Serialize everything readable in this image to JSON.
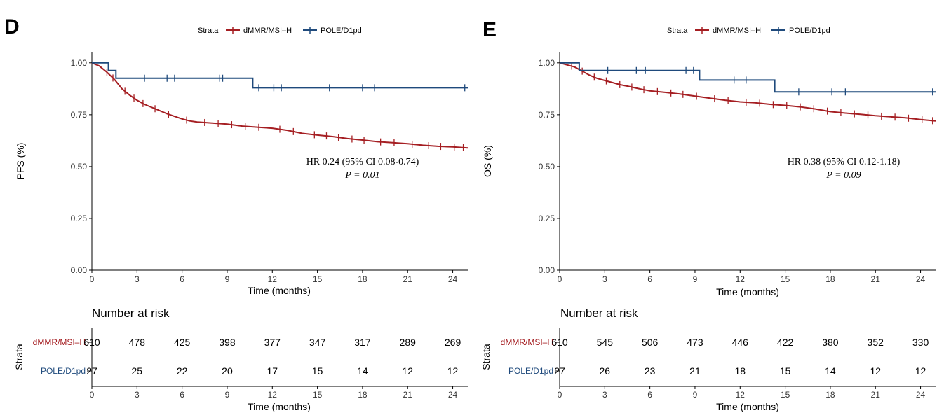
{
  "panels": [
    {
      "letter": "D",
      "legend": {
        "title": "Strata",
        "items": [
          "dMMR/MSI–H",
          "POLE/D1pd"
        ]
      },
      "ylabel": "PFS (%)",
      "annotation": {
        "hr": "HR 0.24 (95% CI 0.08-0.74)",
        "p": "P = 0.01"
      },
      "risk_title": "Number at risk",
      "risk_ylabel": "Strata",
      "risk_rows": [
        {
          "label": "dMMR/MSI–H",
          "values": [
            "610",
            "478",
            "425",
            "398",
            "377",
            "347",
            "317",
            "289",
            "269"
          ]
        },
        {
          "label": "POLE/D1pd",
          "values": [
            "27",
            "25",
            "22",
            "20",
            "17",
            "15",
            "14",
            "12",
            "12"
          ]
        }
      ]
    },
    {
      "letter": "E",
      "legend": {
        "title": "Strata",
        "items": [
          "dMMR/MSI–H",
          "POLE/D1pd"
        ]
      },
      "ylabel": "OS (%)",
      "annotation": {
        "hr": "HR 0.38 (95% CI 0.12-1.18)",
        "p": "P = 0.09"
      },
      "risk_title": "Number at risk",
      "risk_ylabel": "Strata",
      "risk_rows": [
        {
          "label": "dMMR/MSI–H",
          "values": [
            "610",
            "545",
            "506",
            "473",
            "446",
            "422",
            "380",
            "352",
            "330"
          ]
        },
        {
          "label": "POLE/D1pd",
          "values": [
            "27",
            "26",
            "23",
            "21",
            "18",
            "15",
            "14",
            "12",
            "12"
          ]
        }
      ]
    }
  ],
  "colors": {
    "dmmr": "#a51e22",
    "pole": "#1f4a7c",
    "axis": "#000000",
    "label": "#333333"
  },
  "chart_data": [
    {
      "type": "line",
      "xlabel": "Time (months)",
      "ylabel": "PFS (%)",
      "xlim": [
        0,
        25
      ],
      "ylim": [
        0,
        1.05
      ],
      "xticks": [
        0,
        3,
        6,
        9,
        12,
        15,
        18,
        21,
        24
      ],
      "yticks": [
        0.0,
        0.25,
        0.5,
        0.75,
        1.0
      ],
      "ytick_labels": [
        "0.00",
        "0.25",
        "0.50",
        "0.75",
        "1.00"
      ],
      "grid": false,
      "legend_position": "top",
      "series": [
        {
          "name": "dMMR/MSI–H",
          "x": [
            0,
            0.5,
            1,
            1.5,
            2,
            2.5,
            3,
            3.5,
            4,
            4.5,
            5,
            5.5,
            6,
            6.5,
            7,
            8,
            9,
            10,
            11,
            12,
            13,
            14,
            15,
            16,
            17,
            18,
            19,
            20,
            21,
            22,
            23,
            24,
            25
          ],
          "y": [
            1.0,
            0.985,
            0.955,
            0.92,
            0.875,
            0.845,
            0.82,
            0.8,
            0.785,
            0.77,
            0.755,
            0.742,
            0.73,
            0.72,
            0.715,
            0.71,
            0.705,
            0.695,
            0.69,
            0.685,
            0.675,
            0.66,
            0.652,
            0.645,
            0.635,
            0.628,
            0.62,
            0.615,
            0.61,
            0.603,
            0.598,
            0.595,
            0.59
          ],
          "censor_x": [
            1,
            1.4,
            2.2,
            2.8,
            3.4,
            4.2,
            5.1,
            6.3,
            7.5,
            8.4,
            9.3,
            10.2,
            11.1,
            12.5,
            13.4,
            14.8,
            15.6,
            16.4,
            17.3,
            18.1,
            19.2,
            20.1,
            21.3,
            22.4,
            23.2,
            24.1,
            24.7
          ]
        },
        {
          "name": "POLE/D1pd",
          "x": [
            0,
            1.1,
            1.1,
            1.6,
            1.6,
            10.7,
            10.7,
            25
          ],
          "y": [
            1.0,
            1.0,
            0.963,
            0.963,
            0.926,
            0.926,
            0.88,
            0.88
          ],
          "censor_x": [
            3.5,
            5.0,
            5.5,
            8.5,
            8.7,
            11.1,
            12.1,
            12.6,
            15.8,
            18.0,
            18.8,
            24.8
          ]
        }
      ]
    },
    {
      "type": "line",
      "xlabel": "Time (months)",
      "ylabel": "OS (%)",
      "xlim": [
        0,
        25
      ],
      "ylim": [
        0,
        1.05
      ],
      "xticks": [
        0,
        3,
        6,
        9,
        12,
        15,
        18,
        21,
        24
      ],
      "yticks": [
        0.0,
        0.25,
        0.5,
        0.75,
        1.0
      ],
      "ytick_labels": [
        "0.00",
        "0.25",
        "0.50",
        "0.75",
        "1.00"
      ],
      "grid": false,
      "legend_position": "top",
      "series": [
        {
          "name": "dMMR/MSI–H",
          "x": [
            0,
            0.5,
            1,
            1.5,
            2,
            2.5,
            3,
            3.5,
            4,
            4.5,
            5,
            5.5,
            6,
            7,
            8,
            9,
            10,
            11,
            12,
            13,
            14,
            15,
            16,
            17,
            18,
            19,
            20,
            21,
            22,
            23,
            24,
            25
          ],
          "y": [
            1.0,
            0.99,
            0.98,
            0.96,
            0.94,
            0.925,
            0.915,
            0.905,
            0.895,
            0.888,
            0.88,
            0.872,
            0.865,
            0.858,
            0.85,
            0.84,
            0.83,
            0.82,
            0.812,
            0.808,
            0.8,
            0.795,
            0.788,
            0.778,
            0.765,
            0.758,
            0.752,
            0.745,
            0.74,
            0.735,
            0.727,
            0.72
          ],
          "censor_x": [
            0.8,
            1.5,
            2.3,
            3.1,
            4.0,
            4.8,
            5.6,
            6.5,
            7.4,
            8.2,
            9.1,
            10.3,
            11.2,
            12.4,
            13.3,
            14.2,
            15.1,
            16.0,
            16.9,
            17.8,
            18.7,
            19.6,
            20.5,
            21.4,
            22.3,
            23.2,
            24.1,
            24.8
          ]
        },
        {
          "name": "POLE/D1pd",
          "x": [
            0,
            1.3,
            1.3,
            9.3,
            9.3,
            14.3,
            14.3,
            25
          ],
          "y": [
            1.0,
            1.0,
            0.963,
            0.963,
            0.917,
            0.917,
            0.86,
            0.86
          ],
          "censor_x": [
            3.2,
            5.1,
            5.7,
            8.4,
            8.9,
            11.6,
            12.4,
            15.9,
            18.1,
            19.0,
            24.8
          ]
        }
      ]
    }
  ]
}
